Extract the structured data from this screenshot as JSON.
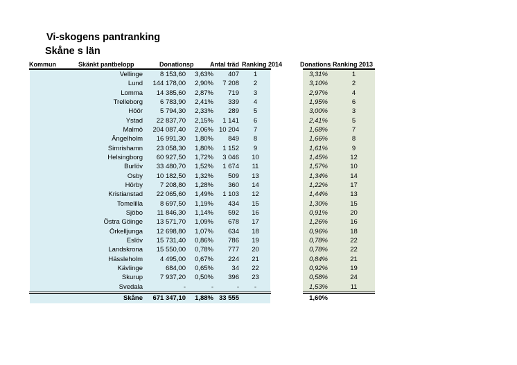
{
  "page_title": "Vi-skogens pantranking",
  "subtitle": "Skåne s län",
  "colors": {
    "main_table_bg": "#daeef3",
    "ranking_2013_bg": "#e2e8d8",
    "border": "#000000",
    "text": "#000000"
  },
  "table": {
    "headers": {
      "kommun": "Kommun",
      "pantbelopp": "Skänkt pantbelopp",
      "donations_2014": "Donationsp",
      "antal_trad": "Antal träd",
      "ranking_2014": "Ranking 2014",
      "donations_2013": "Donationsp",
      "ranking_2013": "Ranking 2013"
    },
    "rows": [
      {
        "kommun": "Vellinge",
        "pantbelopp": "8 153,60",
        "donations_2014": "3,63%",
        "antal_trad": "407",
        "ranking_2014": "1",
        "donations_2013": "3,31%",
        "ranking_2013": "1"
      },
      {
        "kommun": "Lund",
        "pantbelopp": "144 178,00",
        "donations_2014": "2,90%",
        "antal_trad": "7 208",
        "ranking_2014": "2",
        "donations_2013": "3,10%",
        "ranking_2013": "2"
      },
      {
        "kommun": "Lomma",
        "pantbelopp": "14 385,60",
        "donations_2014": "2,87%",
        "antal_trad": "719",
        "ranking_2014": "3",
        "donations_2013": "2,97%",
        "ranking_2013": "4"
      },
      {
        "kommun": "Trelleborg",
        "pantbelopp": "6 783,90",
        "donations_2014": "2,41%",
        "antal_trad": "339",
        "ranking_2014": "4",
        "donations_2013": "1,95%",
        "ranking_2013": "6"
      },
      {
        "kommun": "Höör",
        "pantbelopp": "5 794,30",
        "donations_2014": "2,33%",
        "antal_trad": "289",
        "ranking_2014": "5",
        "donations_2013": "3,00%",
        "ranking_2013": "3"
      },
      {
        "kommun": "Ystad",
        "pantbelopp": "22 837,70",
        "donations_2014": "2,15%",
        "antal_trad": "1 141",
        "ranking_2014": "6",
        "donations_2013": "2,41%",
        "ranking_2013": "5"
      },
      {
        "kommun": "Malmö",
        "pantbelopp": "204 087,40",
        "donations_2014": "2,06%",
        "antal_trad": "10 204",
        "ranking_2014": "7",
        "donations_2013": "1,68%",
        "ranking_2013": "7"
      },
      {
        "kommun": "Ängelholm",
        "pantbelopp": "16 991,30",
        "donations_2014": "1,80%",
        "antal_trad": "849",
        "ranking_2014": "8",
        "donations_2013": "1,66%",
        "ranking_2013": "8"
      },
      {
        "kommun": "Simrishamn",
        "pantbelopp": "23 058,30",
        "donations_2014": "1,80%",
        "antal_trad": "1 152",
        "ranking_2014": "9",
        "donations_2013": "1,61%",
        "ranking_2013": "9"
      },
      {
        "kommun": "Helsingborg",
        "pantbelopp": "60 927,50",
        "donations_2014": "1,72%",
        "antal_trad": "3 046",
        "ranking_2014": "10",
        "donations_2013": "1,45%",
        "ranking_2013": "12"
      },
      {
        "kommun": "Burlöv",
        "pantbelopp": "33 480,70",
        "donations_2014": "1,52%",
        "antal_trad": "1 674",
        "ranking_2014": "11",
        "donations_2013": "1,57%",
        "ranking_2013": "10"
      },
      {
        "kommun": "Osby",
        "pantbelopp": "10 182,50",
        "donations_2014": "1,32%",
        "antal_trad": "509",
        "ranking_2014": "13",
        "donations_2013": "1,34%",
        "ranking_2013": "14"
      },
      {
        "kommun": "Hörby",
        "pantbelopp": "7 208,80",
        "donations_2014": "1,28%",
        "antal_trad": "360",
        "ranking_2014": "14",
        "donations_2013": "1,22%",
        "ranking_2013": "17"
      },
      {
        "kommun": "Kristianstad",
        "pantbelopp": "22 065,60",
        "donations_2014": "1,49%",
        "antal_trad": "1 103",
        "ranking_2014": "12",
        "donations_2013": "1,44%",
        "ranking_2013": "13"
      },
      {
        "kommun": "Tomelilla",
        "pantbelopp": "8 697,50",
        "donations_2014": "1,19%",
        "antal_trad": "434",
        "ranking_2014": "15",
        "donations_2013": "1,30%",
        "ranking_2013": "15"
      },
      {
        "kommun": "Sjöbo",
        "pantbelopp": "11 846,30",
        "donations_2014": "1,14%",
        "antal_trad": "592",
        "ranking_2014": "16",
        "donations_2013": "0,91%",
        "ranking_2013": "20"
      },
      {
        "kommun": "Östra Göinge",
        "pantbelopp": "13 571,70",
        "donations_2014": "1,09%",
        "antal_trad": "678",
        "ranking_2014": "17",
        "donations_2013": "1,26%",
        "ranking_2013": "16"
      },
      {
        "kommun": "Örkelljunga",
        "pantbelopp": "12 698,80",
        "donations_2014": "1,07%",
        "antal_trad": "634",
        "ranking_2014": "18",
        "donations_2013": "0,96%",
        "ranking_2013": "18"
      },
      {
        "kommun": "Eslöv",
        "pantbelopp": "15 731,40",
        "donations_2014": "0,86%",
        "antal_trad": "786",
        "ranking_2014": "19",
        "donations_2013": "0,78%",
        "ranking_2013": "22"
      },
      {
        "kommun": "Landskrona",
        "pantbelopp": "15 550,00",
        "donations_2014": "0,78%",
        "antal_trad": "777",
        "ranking_2014": "20",
        "donations_2013": "0,78%",
        "ranking_2013": "22"
      },
      {
        "kommun": "Hässleholm",
        "pantbelopp": "4 495,00",
        "donations_2014": "0,67%",
        "antal_trad": "224",
        "ranking_2014": "21",
        "donations_2013": "0,84%",
        "ranking_2013": "21"
      },
      {
        "kommun": "Kävlinge",
        "pantbelopp": "684,00",
        "donations_2014": "0,65%",
        "antal_trad": "34",
        "ranking_2014": "22",
        "donations_2013": "0,92%",
        "ranking_2013": "19"
      },
      {
        "kommun": "Skurup",
        "pantbelopp": "7 937,20",
        "donations_2014": "0,50%",
        "antal_trad": "396",
        "ranking_2014": "23",
        "donations_2013": "0,58%",
        "ranking_2013": "24"
      },
      {
        "kommun": "Svedala",
        "pantbelopp": "-",
        "donations_2014": "-",
        "antal_trad": "-",
        "ranking_2014": "-",
        "donations_2013": "1,53%",
        "ranking_2013": "11"
      }
    ],
    "total": {
      "kommun": "Skåne",
      "pantbelopp": "671 347,10",
      "donations_2014": "1,88%",
      "antal_trad": "33 555",
      "ranking_2014": "",
      "donations_2013": "1,60%",
      "ranking_2013": ""
    }
  }
}
